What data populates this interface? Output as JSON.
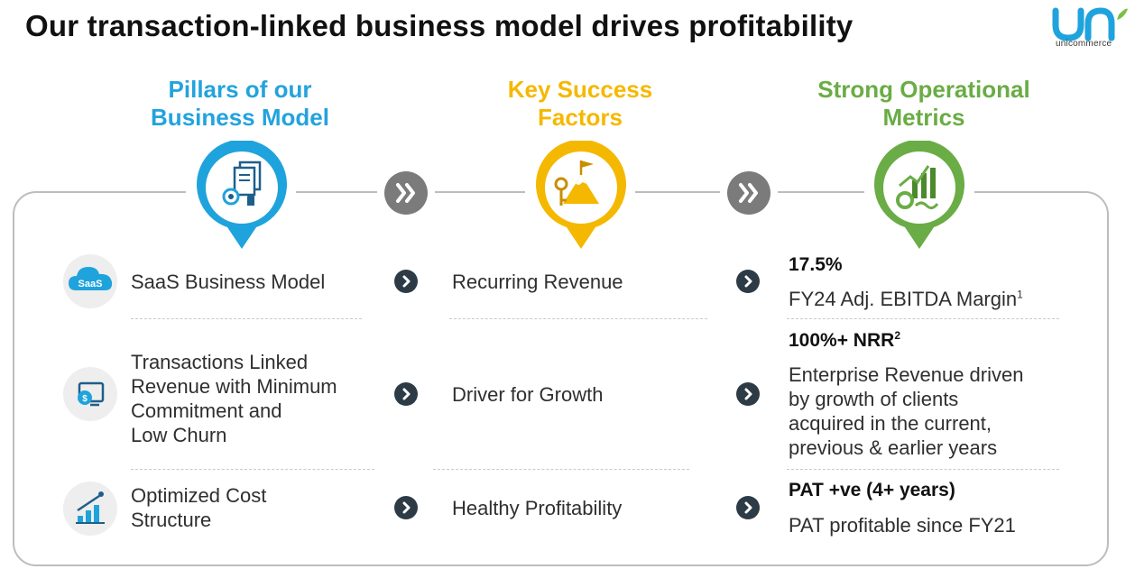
{
  "title": "Our transaction-linked business model drives profitability",
  "logo": {
    "name": "unicommerce",
    "colors": [
      "#1fa3dc",
      "#7bc043"
    ]
  },
  "columns": [
    {
      "heading_line1": "Pillars of our",
      "heading_line2": "Business Model",
      "color": "#23a3dd",
      "icon": "documents-gear-icon"
    },
    {
      "heading_line1": "Key Success",
      "heading_line2": "Factors",
      "color": "#f5b800",
      "icon": "mountain-key-icon"
    },
    {
      "heading_line1": "Strong Operational",
      "heading_line2": "Metrics",
      "color": "#6aac45",
      "icon": "growth-chart-icon"
    }
  ],
  "rows": [
    {
      "icon": "saas-cloud-icon",
      "icon_label": "SaaS",
      "pillar": [
        "SaaS Business Model"
      ],
      "factor": "Recurring Revenue",
      "metric_title": "17.5%",
      "metric_desc": [
        "FY24 Adj. EBITDA Margin"
      ],
      "metric_desc_sup": "1"
    },
    {
      "icon": "transaction-screen-icon",
      "pillar": [
        "Transactions Linked",
        "Revenue with Minimum",
        "Commitment and",
        "Low Churn"
      ],
      "factor": "Driver for Growth",
      "metric_title": "100%+ NRR",
      "metric_title_sup": "2",
      "metric_desc": [
        "Enterprise Revenue driven",
        "by growth of clients",
        "acquired in the current,",
        "previous & earlier years"
      ]
    },
    {
      "icon": "cost-chart-icon",
      "pillar": [
        "Optimized Cost",
        "Structure"
      ],
      "factor": "Healthy Profitability",
      "metric_title": "PAT +ve (4+ years)",
      "metric_desc": [
        "PAT profitable since FY21"
      ]
    }
  ]
}
